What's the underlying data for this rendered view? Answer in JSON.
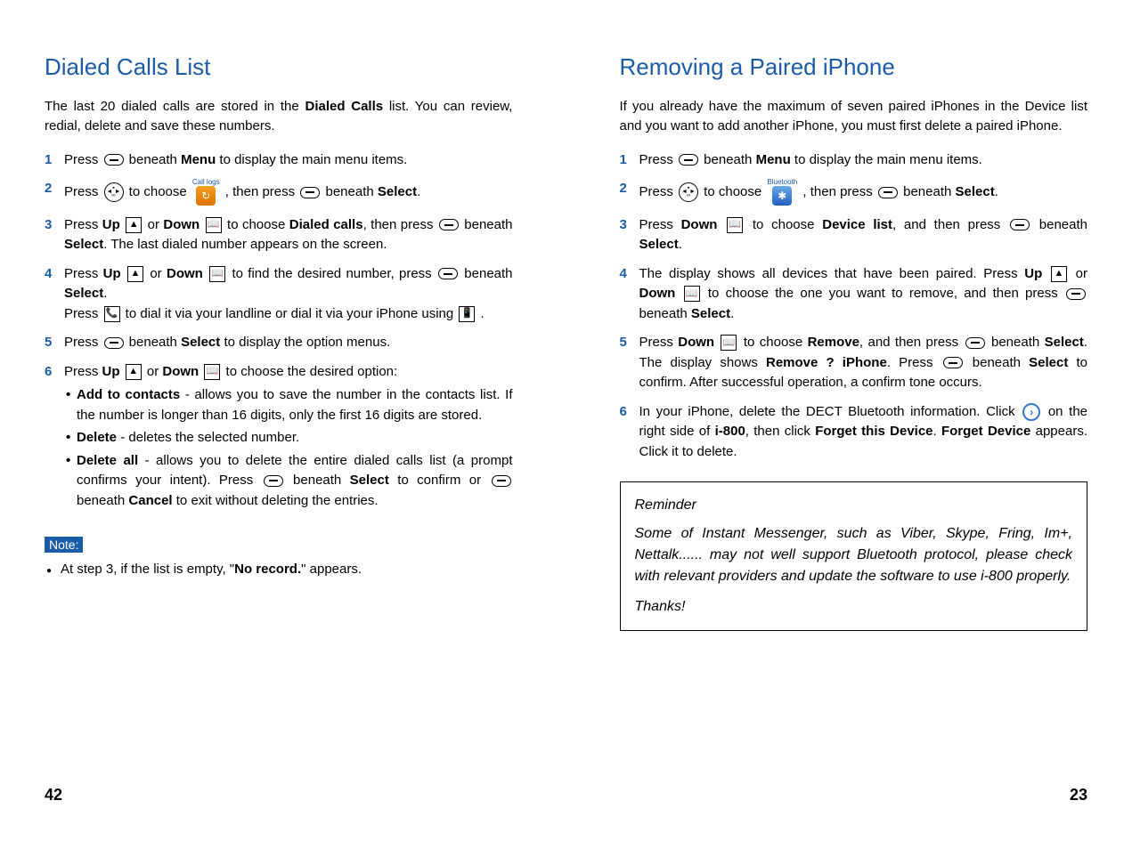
{
  "left": {
    "title": "Dialed Calls List",
    "intro_parts": [
      "The last 20 dialed calls are stored in the ",
      "Dialed Calls",
      " list. You can review, redial, delete and save these numbers."
    ],
    "steps": {
      "s1": {
        "pre": "Press ",
        "mid": " beneath ",
        "menu": "Menu",
        "post": " to display the main menu items."
      },
      "s2": {
        "pre": "Press ",
        "choose": " to choose ",
        "app_label": "Call logs",
        "then": " , then press ",
        "beneath": " beneath ",
        "select": "Select",
        "end": "."
      },
      "s3": {
        "pre": "Press ",
        "up": "Up",
        "or": " or ",
        "down": "Down",
        "choose": " to choose ",
        "dialed": "Dialed calls",
        "then": ", then press ",
        "beneath": " beneath ",
        "select": "Select",
        "last": ". The last dialed number appears on the screen."
      },
      "s4": {
        "pre": "Press ",
        "up": "Up",
        "or": " or ",
        "down": "Down",
        "find": " to find the desired number, press ",
        "beneath": " beneath ",
        "select": "Select",
        "end": ".",
        "line2a": "Press ",
        "line2b": " to dial it via your landline or dial it via your iPhone using ",
        "line2c": " ."
      },
      "s5": {
        "pre": "Press ",
        "beneath": " beneath ",
        "select": "Select",
        "post": " to display the option menus."
      },
      "s6": {
        "pre": "Press ",
        "up": "Up",
        "or": " or ",
        "down": "Down",
        "post": " to choose the desired option:",
        "opt1_b": "Add to contacts",
        "opt1_t": " - allows you to save the number in the contacts list. If the number is longer than 16 digits, only the first 16 digits are stored.",
        "opt2_b": "Delete",
        "opt2_t": " - deletes the selected number.",
        "opt3_b": "Delete all",
        "opt3_t1": " - allows you to delete the entire dialed calls list (a prompt confirms your intent). Press ",
        "opt3_t2": " beneath ",
        "opt3_sel": "Select",
        "opt3_t3": " to confirm or ",
        "opt3_t4": " beneath ",
        "opt3_can": "Cancel",
        "opt3_t5": " to exit without deleting the entries."
      }
    },
    "note_label": "Note:",
    "note_parts": [
      "At step 3, if the list is empty, \"",
      "No record.",
      "\" appears."
    ],
    "page_num": "42"
  },
  "right": {
    "title": "Removing a Paired iPhone",
    "intro": "If you already have the maximum of seven paired iPhones in the Device list and you want to add another iPhone, you must first delete a paired iPhone.",
    "steps": {
      "s1": {
        "pre": "Press ",
        "mid": " beneath ",
        "menu": "Menu",
        "post": " to display the main menu items."
      },
      "s2": {
        "pre": "Press ",
        "choose": " to choose ",
        "app_label": "Bluetooth",
        "then": " , then press ",
        "beneath": " beneath ",
        "select": "Select",
        "end": "."
      },
      "s3": {
        "pre": "Press ",
        "down": "Down",
        "choose": " to choose ",
        "dev": "Device list",
        "then": ", and then press ",
        "beneath": " beneath ",
        "select": "Select",
        "end": "."
      },
      "s4": {
        "t1": "The display shows all devices that have been paired. Press ",
        "up": "Up",
        "or": " or ",
        "down": "Down",
        "t2": " to choose the one you want to remove, and then press ",
        "beneath": " beneath ",
        "select": "Select",
        "end": "."
      },
      "s5": {
        "pre": "Press ",
        "down": "Down",
        "choose": " to choose ",
        "rem": "Remove",
        "then": ", and then press ",
        "beneath": " beneath ",
        "select": "Select",
        "disp": ". The display shows ",
        "ask": "Remove ? iPhone",
        "p2": ". Press ",
        "beneath2": " beneath ",
        "select2": "Select",
        "post": " to confirm. After successful operation, a confirm tone occurs."
      },
      "s6": {
        "t1": "In your iPhone, delete the DECT Bluetooth information. Click ",
        "t2": " on the right side of ",
        "i800": "i-800",
        "t3": ", then click ",
        "forget1": "Forget this Device",
        "t4": ". ",
        "forget2": "Forget Device",
        "t5": " appears. Click it to delete."
      }
    },
    "reminder": {
      "title": "Reminder",
      "body": "Some of Instant Messenger, such as Viber, Skype, Fring, Im+, Nettalk...... may not well support Bluetooth protocol, please check with relevant providers and update the software to use i-800 properly.",
      "thanks": "Thanks!"
    },
    "page_num": "23"
  }
}
